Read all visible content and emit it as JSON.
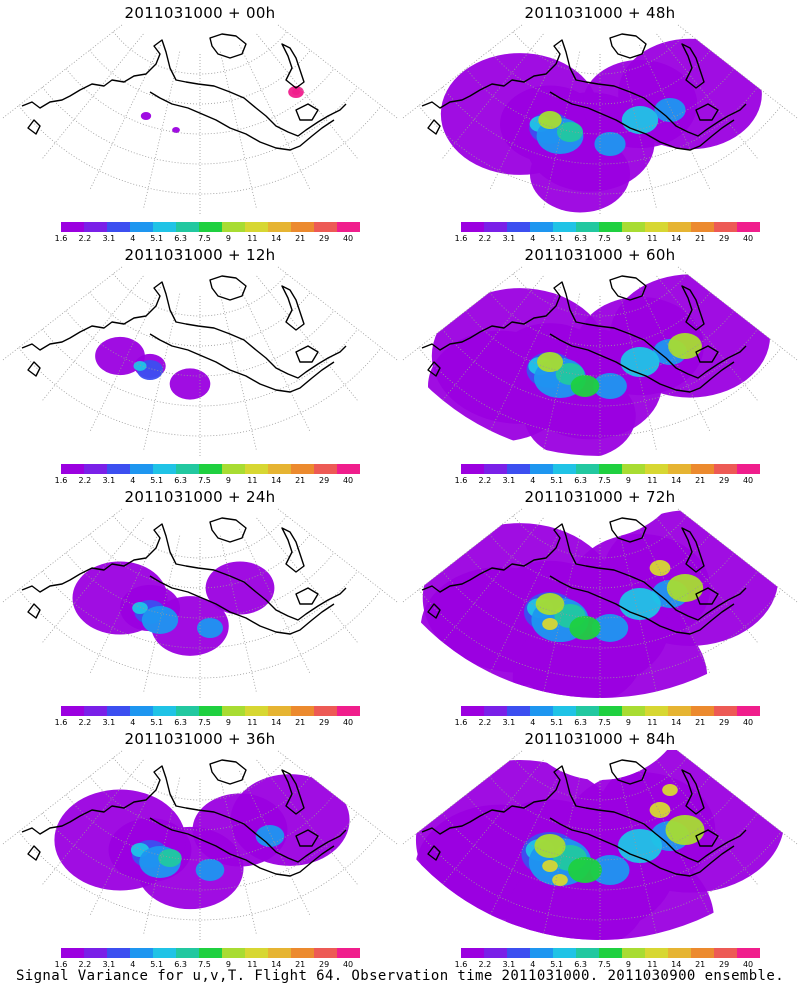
{
  "colorbar": {
    "labels": [
      "1.6",
      "2.2",
      "3.1",
      "4",
      "5.1",
      "6.3",
      "7.5",
      "9",
      "11",
      "14",
      "21",
      "29",
      "40"
    ],
    "colors": [
      "#9b00e0",
      "#7a20e8",
      "#3c4ff0",
      "#1e96f0",
      "#20c3e6",
      "#22c8a0",
      "#1fd040",
      "#a8dc32",
      "#d7d732",
      "#e6b432",
      "#ec8a2e",
      "#ed5a55",
      "#f01e8c"
    ]
  },
  "panels": [
    {
      "title": "2011031000 + 00h",
      "intensity": 0
    },
    {
      "title": "2011031000 + 48h",
      "intensity": 4
    },
    {
      "title": "2011031000 + 12h",
      "intensity": 1
    },
    {
      "title": "2011031000 + 60h",
      "intensity": 5
    },
    {
      "title": "2011031000 + 24h",
      "intensity": 2
    },
    {
      "title": "2011031000 + 72h",
      "intensity": 6
    },
    {
      "title": "2011031000 + 36h",
      "intensity": 3
    },
    {
      "title": "2011031000 + 84h",
      "intensity": 7
    }
  ],
  "caption": "Signal Variance for u,v,T. Flight 64. Observation time 2011031000. 2011030900 ensemble."
}
